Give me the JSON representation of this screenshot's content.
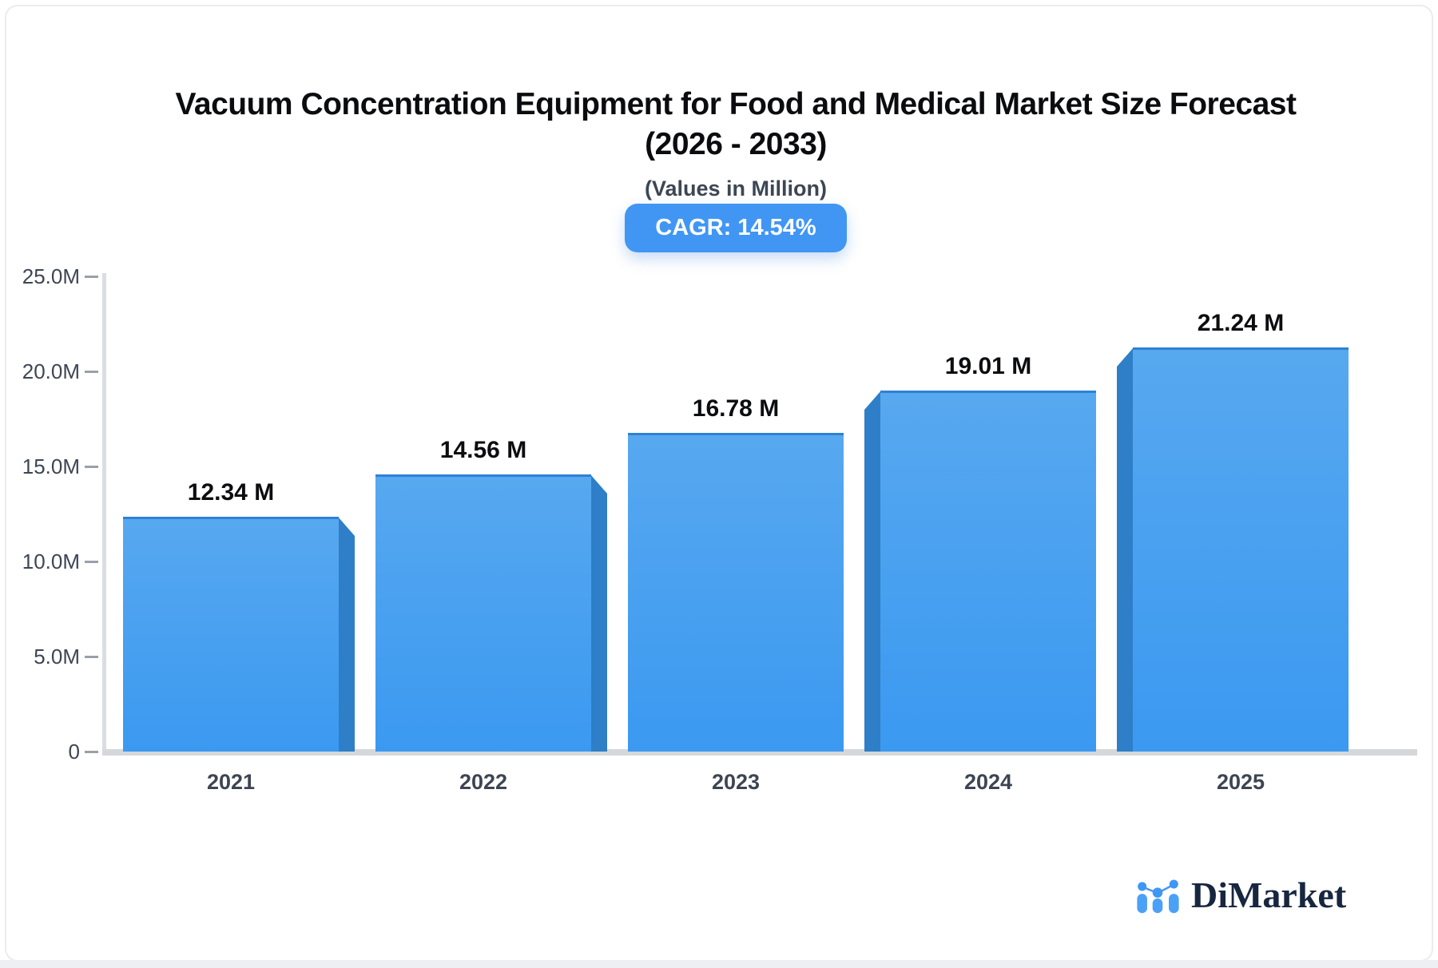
{
  "header": {
    "title_line1": "Vacuum Concentration Equipment for Food and Medical Market Size Forecast",
    "title_line2": "(2026 - 2033)",
    "subtitle": "(Values in Million)",
    "cagr_badge": "CAGR: 14.54%"
  },
  "chart_data": {
    "type": "bar",
    "title": "Vacuum Concentration Equipment for Food and Medical Market Size Forecast (2026 - 2033)",
    "subtitle": "(Values in Million)",
    "cagr": "14.54%",
    "categories": [
      "2021",
      "2022",
      "2023",
      "2024",
      "2025"
    ],
    "values": [
      12.34,
      14.56,
      16.78,
      19.01,
      21.24
    ],
    "value_labels": [
      "12.34 M",
      "14.56 M",
      "16.78 M",
      "19.01 M",
      "21.24 M"
    ],
    "unit": "M",
    "xlabel": "",
    "ylabel": "",
    "ylim": [
      0,
      25
    ],
    "yticks": [
      {
        "value": 0,
        "label": "0"
      },
      {
        "value": 5,
        "label": "5.0M"
      },
      {
        "value": 10,
        "label": "10.0M"
      },
      {
        "value": 15,
        "label": "15.0M"
      },
      {
        "value": 20,
        "label": "20.0M"
      },
      {
        "value": 25,
        "label": "25.0M"
      }
    ],
    "grid": false,
    "legend": null,
    "bar_3d_sides": [
      "right",
      "right",
      "none",
      "left",
      "left"
    ],
    "colors": {
      "bar_top": "#57a8ef",
      "bar_bottom": "#3b99f1",
      "bar_side": "#2e7fc7",
      "bar_top_edge": "#2e81d4",
      "badge_bg": "#4196f3",
      "badge_text": "#ffffff",
      "axis_line": "#dadde1",
      "baseline": "#d5d8db",
      "tick_text": "#3e4653",
      "value_label_text": "#0c0d10",
      "title_text": "#0b0c0f"
    }
  },
  "logo": {
    "brand": "DiMarket"
  }
}
